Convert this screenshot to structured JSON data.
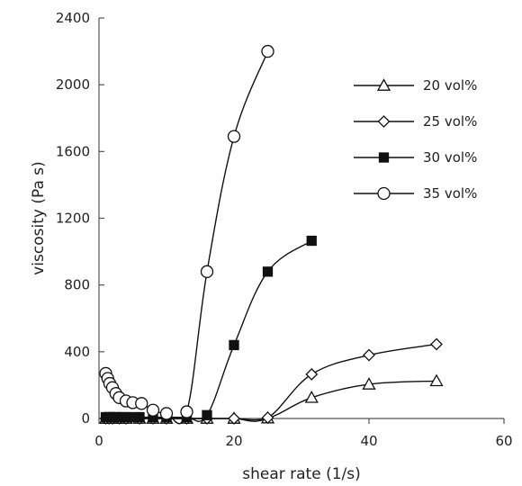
{
  "chart_data": {
    "type": "scatter",
    "title": "",
    "xlabel": "shear rate (1/s)",
    "ylabel": "viscosity (Pa s)",
    "xlim": [
      0,
      60
    ],
    "ylim": [
      0,
      2400
    ],
    "xticks": [
      0,
      20,
      40,
      60
    ],
    "yticks": [
      0,
      400,
      800,
      1200,
      1600,
      2000,
      2400
    ],
    "grid": false,
    "legend_position": "top-right",
    "series": [
      {
        "name": "20 vol%",
        "marker": "triangle-open",
        "line": "smooth",
        "points": [
          [
            1,
            0
          ],
          [
            1.5,
            0
          ],
          [
            2,
            0
          ],
          [
            3,
            0
          ],
          [
            4,
            0
          ],
          [
            6,
            0
          ],
          [
            8,
            0
          ],
          [
            10,
            0
          ],
          [
            13,
            0
          ],
          [
            16,
            0
          ],
          [
            20,
            0
          ],
          [
            25,
            2
          ],
          [
            31.5,
            125
          ],
          [
            40,
            205
          ],
          [
            50,
            225
          ]
        ]
      },
      {
        "name": "25 vol%",
        "marker": "diamond-open",
        "line": "smooth",
        "points": [
          [
            1,
            0
          ],
          [
            1.5,
            0
          ],
          [
            2,
            0
          ],
          [
            3,
            0
          ],
          [
            4,
            0
          ],
          [
            6,
            0
          ],
          [
            8,
            0
          ],
          [
            10,
            0
          ],
          [
            13,
            0
          ],
          [
            16,
            0
          ],
          [
            20,
            0
          ],
          [
            25,
            5
          ],
          [
            31.5,
            265
          ],
          [
            40,
            380
          ],
          [
            50,
            445
          ]
        ]
      },
      {
        "name": "30 vol%",
        "marker": "square-filled",
        "line": "smooth",
        "points": [
          [
            1,
            8
          ],
          [
            1.5,
            8
          ],
          [
            2,
            8
          ],
          [
            2.5,
            8
          ],
          [
            3,
            8
          ],
          [
            4,
            8
          ],
          [
            5,
            8
          ],
          [
            6,
            8
          ],
          [
            8,
            8
          ],
          [
            10,
            8
          ],
          [
            13,
            8
          ],
          [
            16,
            20
          ],
          [
            20,
            440
          ],
          [
            25,
            880
          ],
          [
            31.5,
            1065
          ]
        ]
      },
      {
        "name": "35 vol%",
        "marker": "circle-open",
        "line": "smooth",
        "points": [
          [
            1,
            270
          ],
          [
            1.3,
            240
          ],
          [
            1.6,
            210
          ],
          [
            2,
            185
          ],
          [
            2.5,
            150
          ],
          [
            3,
            125
          ],
          [
            4,
            105
          ],
          [
            5,
            95
          ],
          [
            6.3,
            90
          ],
          [
            8,
            50
          ],
          [
            10,
            30
          ],
          [
            13,
            40
          ],
          [
            16,
            880
          ],
          [
            20,
            1690
          ],
          [
            25,
            2200
          ]
        ]
      }
    ]
  }
}
